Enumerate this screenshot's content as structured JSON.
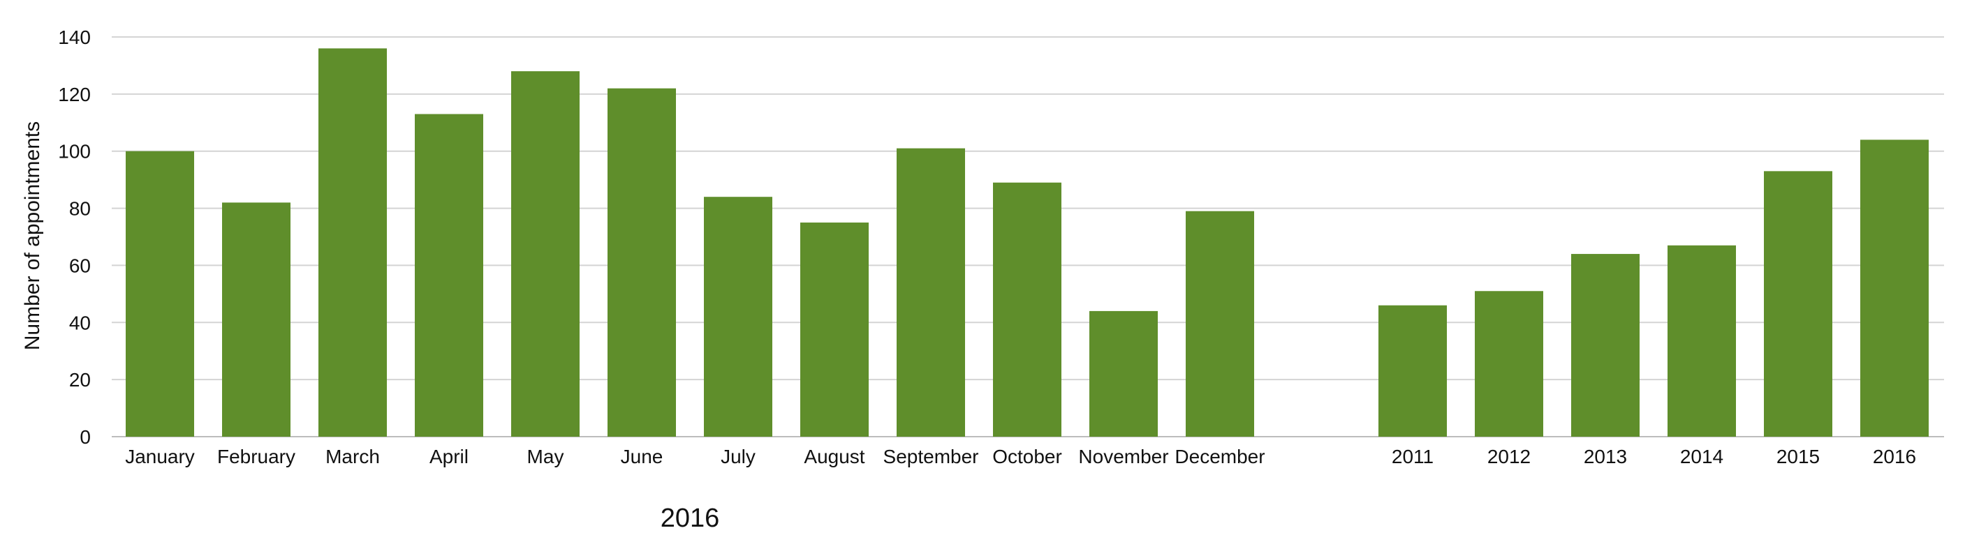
{
  "chart_data": {
    "type": "bar",
    "ylabel": "Number of appointments",
    "ylim": [
      0,
      140
    ],
    "yticks": [
      0,
      20,
      40,
      60,
      80,
      100,
      120,
      140
    ],
    "grid": true,
    "bar_color": "#5f8e2b",
    "groups": [
      {
        "label": "2016",
        "categories": [
          "January",
          "February",
          "March",
          "April",
          "May",
          "June",
          "July",
          "August",
          "September",
          "October",
          "November",
          "December"
        ],
        "values": [
          100,
          82,
          136,
          113,
          128,
          122,
          84,
          75,
          101,
          89,
          44,
          79
        ]
      },
      {
        "label": "",
        "categories": [
          "2011",
          "2012",
          "2013",
          "2014",
          "2015",
          "2016"
        ],
        "values": [
          46,
          51,
          64,
          67,
          93,
          104
        ]
      }
    ]
  }
}
